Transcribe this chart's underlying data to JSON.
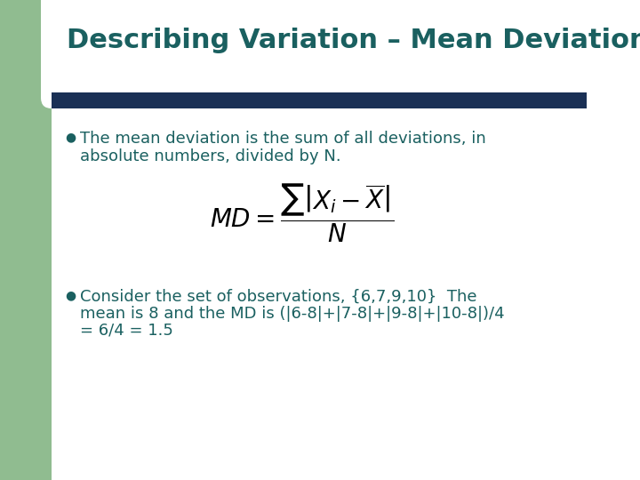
{
  "title": "Describing Variation – Mean Deviation",
  "title_color": "#1a6060",
  "title_fontsize": 22,
  "title_bold": true,
  "bg_color": "#ffffff",
  "left_bar_color": "#90bc90",
  "header_bar_color": "#1a3055",
  "bullet1_line1": "The mean deviation is the sum of all deviations, in",
  "bullet1_line2": "absolute numbers, divided by N.",
  "bullet2_line1": "Consider the set of observations, {6,7,9,10}  The",
  "bullet2_line2": "mean is 8 and the MD is (|6-8|+|7-8|+|9-8|+|10-8|)/4",
  "bullet2_line3": "= 6/4 = 1.5",
  "bullet_color": "#1a6060",
  "bullet_fontsize": 13,
  "formula_color": "#000000",
  "formula_fontsize": 20
}
